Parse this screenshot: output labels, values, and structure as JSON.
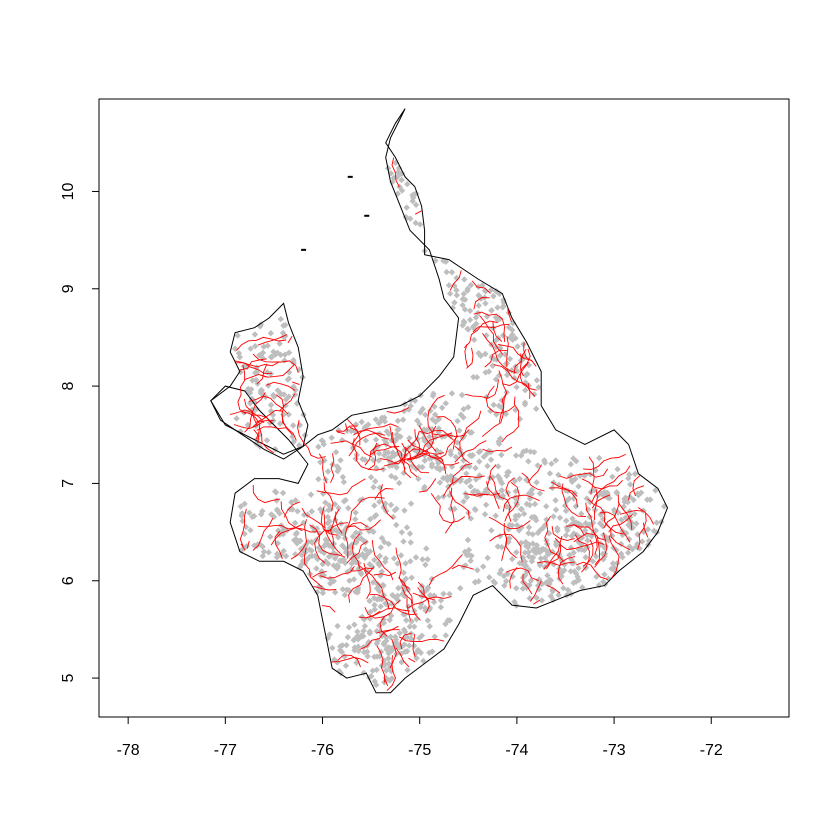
{
  "chart_data": {
    "type": "scatter",
    "title": "",
    "xlabel": "",
    "ylabel": "",
    "xlim": [
      -78.3,
      -71.2
    ],
    "ylim": [
      4.6,
      10.95
    ],
    "x_ticks": [
      -78,
      -77,
      -76,
      -75,
      -74,
      -73,
      -72
    ],
    "y_ticks": [
      5,
      6,
      7,
      8,
      9,
      10
    ],
    "x_tick_labels": [
      "-78",
      "-77",
      "-76",
      "-75",
      "-74",
      "-73",
      "-72"
    ],
    "y_tick_labels": [
      "5",
      "6",
      "7",
      "8",
      "9",
      "10"
    ],
    "grid": false,
    "legend": "none",
    "layers": [
      {
        "role": "region outline",
        "color": "#000000"
      },
      {
        "role": "sub-region boundaries",
        "color": "#ff0000"
      },
      {
        "role": "points",
        "color": "#bebebe",
        "marker": "diamond"
      }
    ],
    "outline": [
      [
        -75.15,
        10.85
      ],
      [
        -75.25,
        10.7
      ],
      [
        -75.35,
        10.5
      ],
      [
        -75.25,
        10.35
      ],
      [
        -75.15,
        10.15
      ],
      [
        -75.05,
        10.05
      ],
      [
        -74.98,
        9.85
      ],
      [
        -74.95,
        9.6
      ],
      [
        -74.95,
        9.35
      ],
      [
        -74.7,
        9.3
      ],
      [
        -74.4,
        9.1
      ],
      [
        -74.15,
        8.95
      ],
      [
        -74.05,
        8.7
      ],
      [
        -73.9,
        8.45
      ],
      [
        -73.75,
        8.15
      ],
      [
        -73.75,
        7.8
      ],
      [
        -73.6,
        7.55
      ],
      [
        -73.3,
        7.4
      ],
      [
        -73.0,
        7.55
      ],
      [
        -72.85,
        7.4
      ],
      [
        -72.75,
        7.1
      ],
      [
        -72.55,
        6.95
      ],
      [
        -72.45,
        6.75
      ],
      [
        -72.55,
        6.5
      ],
      [
        -72.7,
        6.3
      ],
      [
        -72.95,
        6.1
      ],
      [
        -73.1,
        5.95
      ],
      [
        -73.35,
        5.9
      ],
      [
        -73.6,
        5.8
      ],
      [
        -73.8,
        5.72
      ],
      [
        -74.05,
        5.75
      ],
      [
        -74.25,
        5.95
      ],
      [
        -74.45,
        5.85
      ],
      [
        -74.6,
        5.55
      ],
      [
        -74.75,
        5.3
      ],
      [
        -74.95,
        5.15
      ],
      [
        -75.15,
        5.0
      ],
      [
        -75.3,
        4.85
      ],
      [
        -75.45,
        4.85
      ],
      [
        -75.55,
        5.05
      ],
      [
        -75.75,
        5.0
      ],
      [
        -75.9,
        5.1
      ],
      [
        -75.95,
        5.35
      ],
      [
        -76.0,
        5.6
      ],
      [
        -76.05,
        5.85
      ],
      [
        -76.2,
        6.1
      ],
      [
        -76.4,
        6.2
      ],
      [
        -76.65,
        6.2
      ],
      [
        -76.85,
        6.3
      ],
      [
        -76.95,
        6.6
      ],
      [
        -76.9,
        6.9
      ],
      [
        -76.7,
        7.05
      ],
      [
        -76.45,
        7.05
      ],
      [
        -76.25,
        7.0
      ],
      [
        -76.15,
        7.2
      ],
      [
        -76.35,
        7.45
      ],
      [
        -76.65,
        7.75
      ],
      [
        -76.8,
        7.95
      ],
      [
        -77.0,
        8.0
      ],
      [
        -77.15,
        7.85
      ],
      [
        -77.05,
        7.65
      ],
      [
        -76.9,
        7.55
      ],
      [
        -76.75,
        7.45
      ],
      [
        -76.6,
        7.35
      ],
      [
        -76.4,
        7.25
      ],
      [
        -76.2,
        7.38
      ],
      [
        -76.05,
        7.5
      ],
      [
        -75.9,
        7.55
      ],
      [
        -75.7,
        7.7
      ],
      [
        -75.45,
        7.75
      ],
      [
        -75.2,
        7.8
      ],
      [
        -75.0,
        7.9
      ],
      [
        -74.8,
        8.1
      ],
      [
        -74.65,
        8.3
      ],
      [
        -74.6,
        8.7
      ],
      [
        -74.75,
        8.9
      ],
      [
        -74.8,
        9.1
      ],
      [
        -74.9,
        9.4
      ],
      [
        -75.1,
        9.6
      ],
      [
        -75.2,
        9.85
      ],
      [
        -75.3,
        10.1
      ],
      [
        -75.35,
        10.35
      ],
      [
        -75.3,
        10.55
      ],
      [
        -75.2,
        10.75
      ]
    ],
    "west_lobe": [
      [
        -76.4,
        8.85
      ],
      [
        -76.55,
        8.7
      ],
      [
        -76.7,
        8.6
      ],
      [
        -76.9,
        8.55
      ],
      [
        -76.95,
        8.35
      ],
      [
        -76.85,
        8.15
      ],
      [
        -76.95,
        8.0
      ],
      [
        -77.15,
        7.85
      ],
      [
        -77.0,
        7.6
      ],
      [
        -76.8,
        7.5
      ],
      [
        -76.6,
        7.4
      ],
      [
        -76.4,
        7.3
      ],
      [
        -76.2,
        7.38
      ],
      [
        -76.15,
        7.6
      ],
      [
        -76.25,
        7.85
      ],
      [
        -76.2,
        8.1
      ],
      [
        -76.25,
        8.4
      ],
      [
        -76.35,
        8.65
      ]
    ],
    "islands": [
      [
        -75.72,
        10.15
      ],
      [
        -75.55,
        9.75
      ],
      [
        -76.2,
        9.4
      ]
    ],
    "points_sample": [
      [
        -75.2,
        10.3
      ],
      [
        -75.0,
        10.0
      ],
      [
        -74.9,
        9.6
      ],
      [
        -74.5,
        9.1
      ],
      [
        -74.2,
        8.8
      ],
      [
        -74.0,
        8.4
      ],
      [
        -73.9,
        8.0
      ],
      [
        -76.6,
        8.4
      ],
      [
        -76.5,
        8.0
      ],
      [
        -76.4,
        7.7
      ],
      [
        -75.6,
        7.3
      ],
      [
        -75.2,
        7.5
      ],
      [
        -74.9,
        7.6
      ],
      [
        -74.6,
        7.2
      ],
      [
        -74.3,
        7.0
      ],
      [
        -73.6,
        7.0
      ],
      [
        -73.2,
        6.8
      ],
      [
        -72.9,
        6.6
      ],
      [
        -73.0,
        6.3
      ],
      [
        -73.5,
        6.2
      ],
      [
        -73.8,
        6.0
      ],
      [
        -74.1,
        6.3
      ],
      [
        -75.5,
        6.5
      ],
      [
        -75.8,
        6.2
      ],
      [
        -76.1,
        6.4
      ],
      [
        -76.4,
        6.6
      ],
      [
        -75.3,
        6.0
      ],
      [
        -75.0,
        5.6
      ],
      [
        -75.4,
        5.3
      ],
      [
        -75.6,
        5.1
      ]
    ]
  }
}
